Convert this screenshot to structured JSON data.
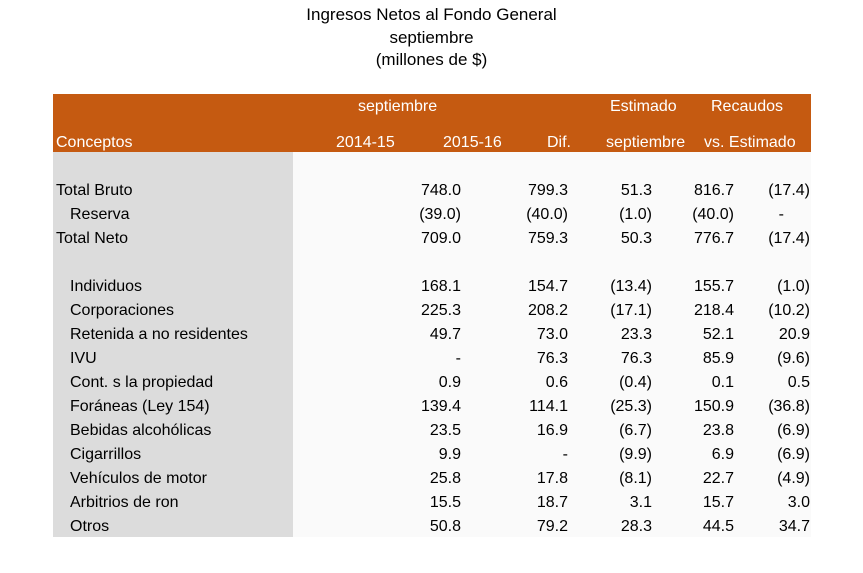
{
  "title": {
    "line1": "Ingresos Netos al Fondo General",
    "line2": "septiembre",
    "line3": "(millones de $)"
  },
  "header": {
    "period_label": "septiembre",
    "estimado_label": "Estimado",
    "recaudos_label": "Recaudos",
    "conceptos_label": "Conceptos",
    "col_2014": "2014-15",
    "col_2015": "2015-16",
    "col_dif": "Dif.",
    "col_est": "septiembre",
    "col_rec": "vs. Estimado"
  },
  "rows": [
    {
      "label": "Total Bruto",
      "v1": "748.0",
      "v2": "799.3",
      "v3": "51.3",
      "v4": "816.7",
      "v5": "(17.4)"
    },
    {
      "label": "Reserva",
      "v1": "(39.0)",
      "v2": "(40.0)",
      "v3": "(1.0)",
      "v4": "(40.0)",
      "v5": "-"
    },
    {
      "label": "Total Neto",
      "v1": "709.0",
      "v2": "759.3",
      "v3": "50.3",
      "v4": "776.7",
      "v5": "(17.4)"
    },
    {
      "label": "Individuos",
      "v1": "168.1",
      "v2": "154.7",
      "v3": "(13.4)",
      "v4": "155.7",
      "v5": "(1.0)"
    },
    {
      "label": "Corporaciones",
      "v1": "225.3",
      "v2": "208.2",
      "v3": "(17.1)",
      "v4": "218.4",
      "v5": "(10.2)"
    },
    {
      "label": "Retenida a no residentes",
      "v1": "49.7",
      "v2": "73.0",
      "v3": "23.3",
      "v4": "52.1",
      "v5": "20.9"
    },
    {
      "label": "IVU",
      "v1": "-",
      "v2": "76.3",
      "v3": "76.3",
      "v4": "85.9",
      "v5": "(9.6)"
    },
    {
      "label": "Cont. s la propiedad",
      "v1": "0.9",
      "v2": "0.6",
      "v3": "(0.4)",
      "v4": "0.1",
      "v5": "0.5"
    },
    {
      "label": "Foráneas (Ley 154)",
      "v1": "139.4",
      "v2": "114.1",
      "v3": "(25.3)",
      "v4": "150.9",
      "v5": "(36.8)"
    },
    {
      "label": "Bebidas alcohólicas",
      "v1": "23.5",
      "v2": "16.9",
      "v3": "(6.7)",
      "v4": "23.8",
      "v5": "(6.9)"
    },
    {
      "label": "Cigarrillos",
      "v1": "9.9",
      "v2": "-",
      "v3": "(9.9)",
      "v4": "6.9",
      "v5": "(6.9)"
    },
    {
      "label": "Vehículos de motor",
      "v1": "25.8",
      "v2": "17.8",
      "v3": "(8.1)",
      "v4": "22.7",
      "v5": "(4.9)"
    },
    {
      "label": "Arbitrios de ron",
      "v1": "15.5",
      "v2": "18.7",
      "v3": "3.1",
      "v4": "15.7",
      "v5": "3.0"
    },
    {
      "label": "Otros",
      "v1": "50.8",
      "v2": "79.2",
      "v3": "28.3",
      "v4": "44.5",
      "v5": "34.7"
    }
  ]
}
